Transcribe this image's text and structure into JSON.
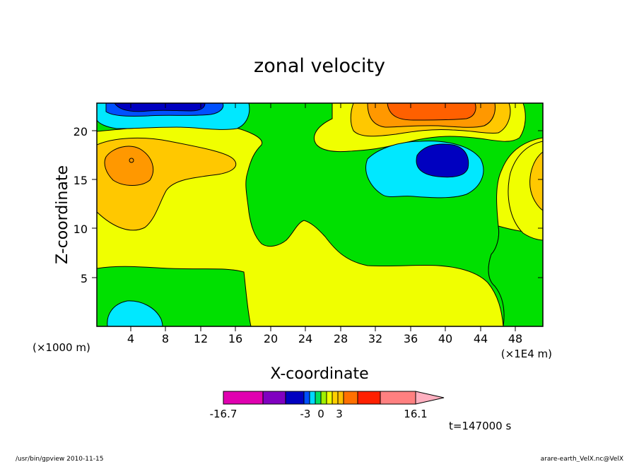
{
  "chart_data": {
    "type": "contour",
    "title": "zonal velocity",
    "xlabel": "X-coordinate",
    "ylabel": "Z-coordinate",
    "x_unit_left": "(×1000 m)",
    "x_unit_right": "(×1E4 m)",
    "x_ticks": [
      "4",
      "8",
      "12",
      "16",
      "20",
      "24",
      "28",
      "32",
      "36",
      "40",
      "44",
      "48"
    ],
    "y_ticks": [
      "5",
      "10",
      "15",
      "20"
    ],
    "xlim": [
      0,
      51
    ],
    "ylim": [
      0,
      22.7
    ],
    "colorbar": {
      "labels": [
        "-16.7",
        "-3",
        "0",
        "3",
        "16.1"
      ],
      "colors": [
        "#e000b0",
        "#8000c0",
        "#0000c0",
        "#0050ff",
        "#00d8ff",
        "#00e060",
        "#a0f000",
        "#f0ff00",
        "#ffd000",
        "#ffa000",
        "#ff7000",
        "#ff2000",
        "#ff8080",
        "#ffb0c0"
      ]
    },
    "timestamp": "t=147000 s",
    "level_colors": {
      "pos_weak": "#f0ff00",
      "neutral": "#00e000",
      "pos_mid": "#ffc800",
      "pos_strong": "#ff9800",
      "pos_max": "#ff6000",
      "neg_weak": "#00e8ff",
      "neg_mid": "#0050ff",
      "neg_strong": "#0000c0"
    }
  },
  "footer": {
    "left": "/usr/bin/gpview   2010-11-15",
    "right": "arare-earth_VelX.nc@VelX"
  }
}
